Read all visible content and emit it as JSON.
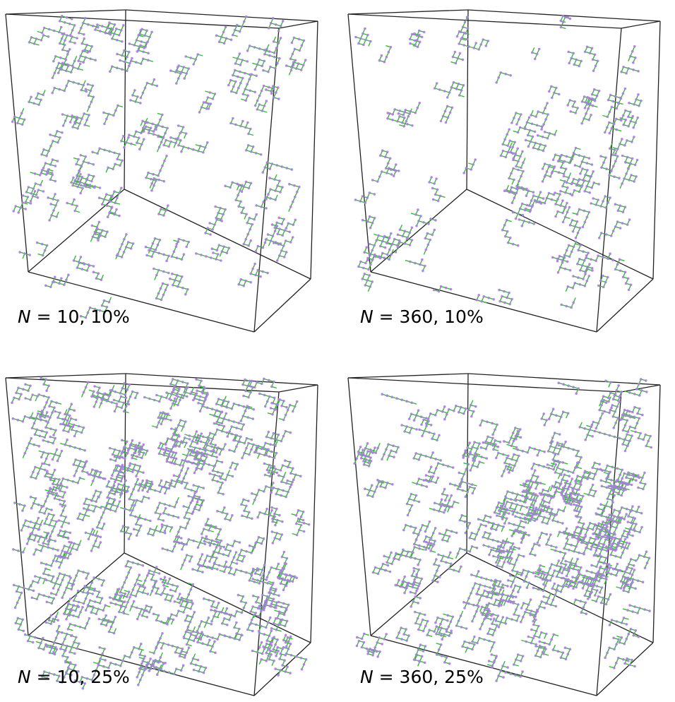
{
  "panels": [
    {
      "symbol": "N",
      "text": " = 10, 10%"
    },
    {
      "symbol": "N",
      "text": " = 360, 10%"
    },
    {
      "symbol": "N",
      "text": " = 10, 25%"
    },
    {
      "symbol": "N",
      "text": " = 360, 25%"
    }
  ]
}
